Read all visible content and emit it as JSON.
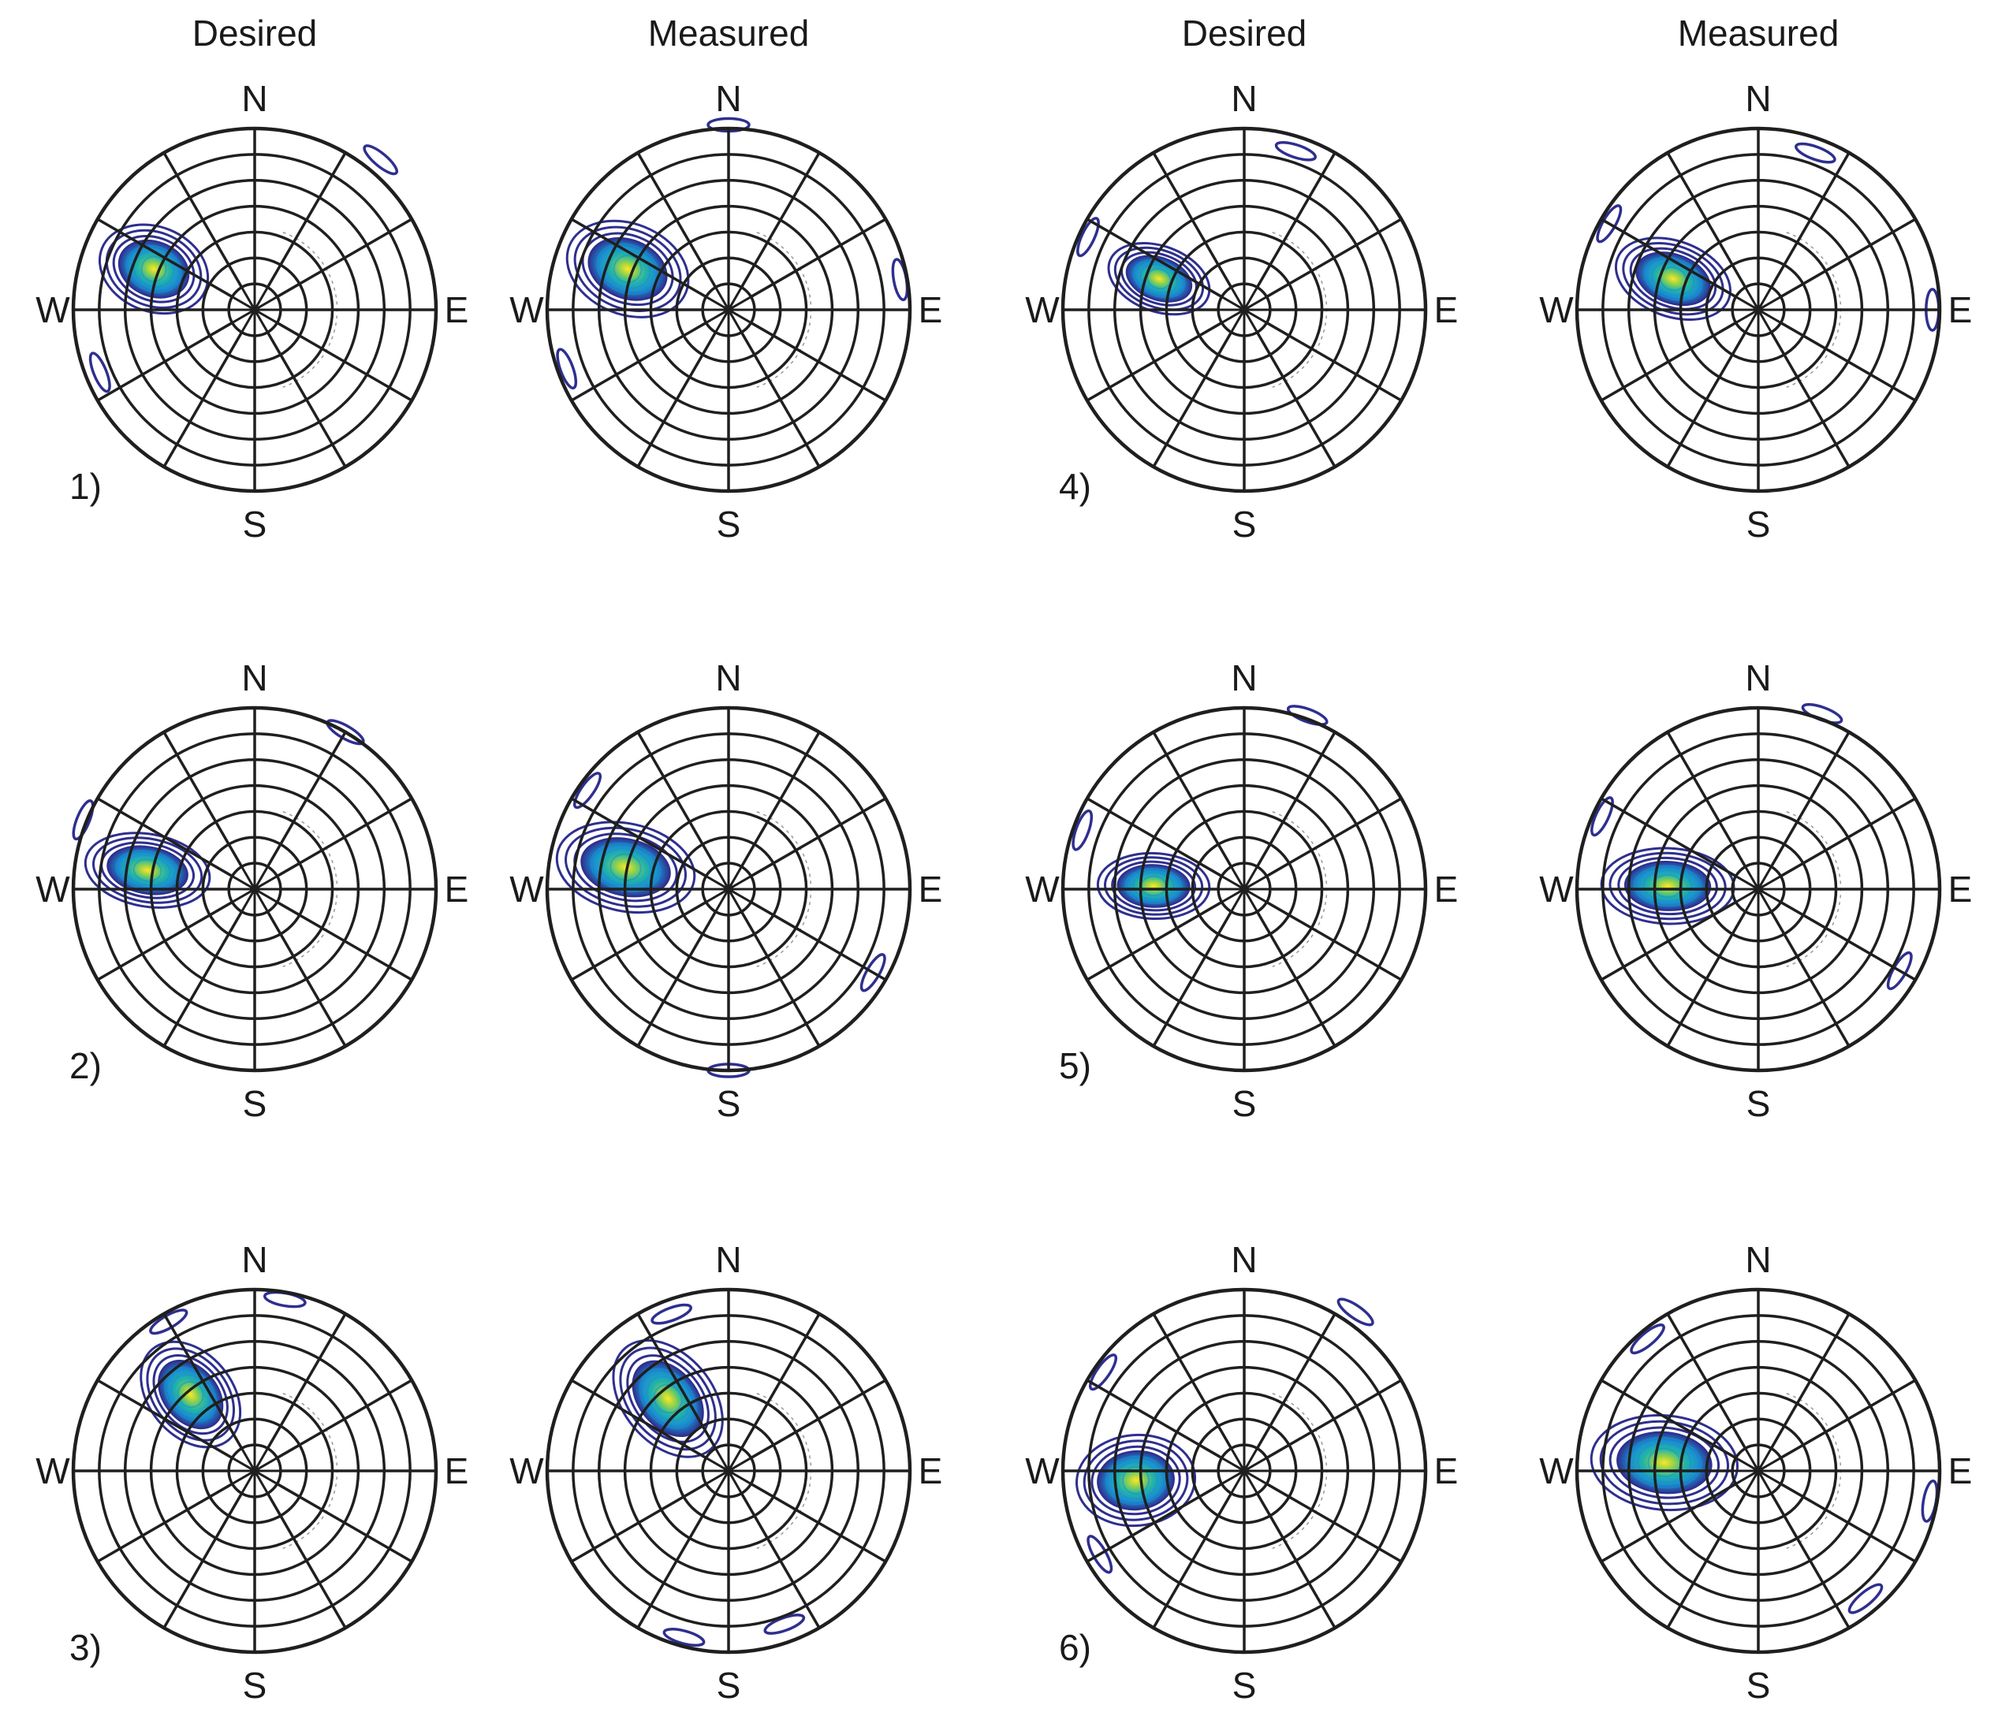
{
  "figure": {
    "column_titles": [
      "Desired",
      "Measured",
      "Desired",
      "Measured"
    ],
    "compass": {
      "north": "N",
      "south": "S",
      "east": "E",
      "west": "W"
    },
    "colors": {
      "ring": "#1f1f1f",
      "dashed_ring": "#9a9a9a",
      "contour_low": "#2e2f8f",
      "contour_mid": "#1a8fd1",
      "contour_high": "#33b8a6",
      "peak": "#fde725"
    }
  },
  "chart_data": [
    {
      "type": "polar-contour",
      "case": "1)",
      "kind": "Desired",
      "blob": {
        "az": 292,
        "r": 0.6,
        "spread_az": 28,
        "spread_r": 0.32
      },
      "scatter": [
        {
          "az": 248,
          "r": 0.92
        },
        {
          "az": 40,
          "r": 1.08
        }
      ]
    },
    {
      "type": "polar-contour",
      "case": "",
      "kind": "Measured",
      "blob": {
        "az": 292,
        "r": 0.6,
        "spread_az": 30,
        "spread_r": 0.36
      },
      "scatter": [
        {
          "az": 250,
          "r": 0.95
        },
        {
          "az": 80,
          "r": 0.96
        },
        {
          "az": 0,
          "r": 1.02
        }
      ]
    },
    {
      "type": "polar-contour",
      "case": "4)",
      "kind": "Desired",
      "blob": {
        "az": 290,
        "r": 0.5,
        "spread_az": 26,
        "spread_r": 0.3
      },
      "scatter": [
        {
          "az": 295,
          "r": 0.95
        },
        {
          "az": 18,
          "r": 0.92
        }
      ]
    },
    {
      "type": "polar-contour",
      "case": "",
      "kind": "Measured",
      "blob": {
        "az": 290,
        "r": 0.5,
        "spread_az": 30,
        "spread_r": 0.34
      },
      "scatter": [
        {
          "az": 300,
          "r": 0.95
        },
        {
          "az": 90,
          "r": 0.96
        },
        {
          "az": 20,
          "r": 0.92
        }
      ]
    },
    {
      "type": "polar-contour",
      "case": "2)",
      "kind": "Desired",
      "blob": {
        "az": 280,
        "r": 0.6,
        "spread_az": 24,
        "spread_r": 0.36
      },
      "scatter": [
        {
          "az": 292,
          "r": 1.02
        },
        {
          "az": 30,
          "r": 1.0
        }
      ]
    },
    {
      "type": "polar-contour",
      "case": "",
      "kind": "Measured",
      "blob": {
        "az": 282,
        "r": 0.58,
        "spread_az": 30,
        "spread_r": 0.4
      },
      "scatter": [
        {
          "az": 305,
          "r": 0.95
        },
        {
          "az": 120,
          "r": 0.92
        },
        {
          "az": 180,
          "r": 1.0
        }
      ]
    },
    {
      "type": "polar-contour",
      "case": "5)",
      "kind": "Desired",
      "blob": {
        "az": 272,
        "r": 0.5,
        "spread_az": 26,
        "spread_r": 0.32
      },
      "scatter": [
        {
          "az": 290,
          "r": 0.95
        },
        {
          "az": 20,
          "r": 1.02
        }
      ]
    },
    {
      "type": "polar-contour",
      "case": "",
      "kind": "Measured",
      "blob": {
        "az": 272,
        "r": 0.5,
        "spread_az": 30,
        "spread_r": 0.38
      },
      "scatter": [
        {
          "az": 295,
          "r": 0.95
        },
        {
          "az": 120,
          "r": 0.9
        },
        {
          "az": 20,
          "r": 1.03
        }
      ]
    },
    {
      "type": "polar-contour",
      "case": "3)",
      "kind": "Desired",
      "blob": {
        "az": 320,
        "r": 0.55,
        "spread_az": 30,
        "spread_r": 0.34
      },
      "scatter": [
        {
          "az": 330,
          "r": 0.95
        },
        {
          "az": 10,
          "r": 0.96
        }
      ]
    },
    {
      "type": "polar-contour",
      "case": "",
      "kind": "Measured",
      "blob": {
        "az": 320,
        "r": 0.52,
        "spread_az": 34,
        "spread_r": 0.38
      },
      "scatter": [
        {
          "az": 340,
          "r": 0.92
        },
        {
          "az": 160,
          "r": 0.9
        },
        {
          "az": 195,
          "r": 0.95
        }
      ]
    },
    {
      "type": "polar-contour",
      "case": "6)",
      "kind": "Desired",
      "blob": {
        "az": 265,
        "r": 0.6,
        "spread_az": 30,
        "spread_r": 0.34
      },
      "scatter": [
        {
          "az": 305,
          "r": 0.95
        },
        {
          "az": 35,
          "r": 1.07
        },
        {
          "az": 240,
          "r": 0.92
        }
      ]
    },
    {
      "type": "polar-contour",
      "case": "",
      "kind": "Measured",
      "blob": {
        "az": 275,
        "r": 0.52,
        "spread_az": 36,
        "spread_r": 0.42
      },
      "scatter": [
        {
          "az": 320,
          "r": 0.95
        },
        {
          "az": 100,
          "r": 0.96
        },
        {
          "az": 140,
          "r": 0.92
        }
      ]
    }
  ]
}
